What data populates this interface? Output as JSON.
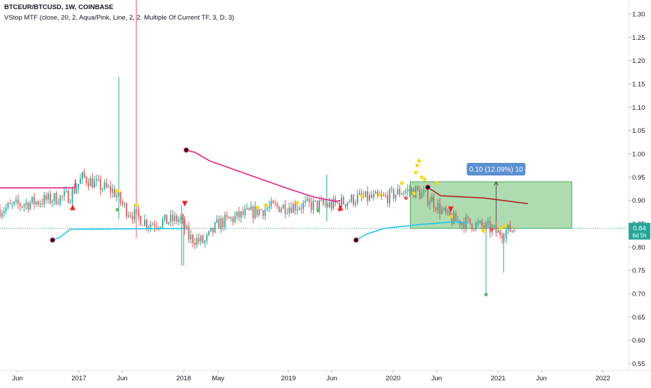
{
  "header": {
    "symbol_line": "BTCEUR/BTCUSD, 1W, COINBASE",
    "indicator_line": "VStop MTF (close, 20, 2, Aqua/Pink, Line, 2, 2. Multiple Of Current TF, 3, D, 3)"
  },
  "colors": {
    "up": "#26a69a",
    "down": "#ef5350",
    "stop_pink": "#e91e8c",
    "stop_aqua": "#1ec8f0",
    "stop_darkred": "#b22222",
    "measure_fill": "#4caf50",
    "measure_label_bg": "#5b8fd1",
    "current_label_bg": "#26a69a",
    "current_price_line": "#26a69a",
    "marker_yellow": "#ffd600",
    "marker_green": "#66bb6a",
    "marker_red": "#ff5252"
  },
  "measure_label": "0.10 (12.09%) 10",
  "current_price": {
    "value": "0.84",
    "countdown": "6d 5h"
  },
  "chart_data": {
    "type": "candlestick",
    "symbol": "BTCEUR/BTCUSD",
    "timeframe": "1W",
    "exchange": "COINBASE",
    "y_ticks": [
      0.55,
      0.6,
      0.65,
      0.7,
      0.75,
      0.8,
      0.85,
      0.9,
      0.95,
      1.0,
      1.05,
      1.1,
      1.15,
      1.2,
      1.25,
      1.3
    ],
    "y_tick_labels": [
      "0.55",
      "0.60",
      "0.65",
      "0.70",
      "0.75",
      "0.80",
      "0.85",
      "0.90",
      "0.95",
      "1.00",
      "1.05",
      "1.10",
      "1.15",
      "1.20",
      "1.25",
      "1.30"
    ],
    "ylim": [
      0.535,
      1.33
    ],
    "xlim": [
      "2016-04-01",
      "2022-04-01"
    ],
    "x_ticks": [
      {
        "date": "2016-06-01",
        "label": "Jun"
      },
      {
        "date": "2017-01-01",
        "label": "2017"
      },
      {
        "date": "2017-06-01",
        "label": "Jun"
      },
      {
        "date": "2018-01-01",
        "label": "2018"
      },
      {
        "date": "2018-05-01",
        "label": "May"
      },
      {
        "date": "2019-01-01",
        "label": "2019"
      },
      {
        "date": "2019-06-01",
        "label": "Jun"
      },
      {
        "date": "2020-01-01",
        "label": "2020"
      },
      {
        "date": "2020-06-01",
        "label": "Jun"
      },
      {
        "date": "2021-01-01",
        "label": "2021"
      },
      {
        "date": "2021-06-01",
        "label": "Jun"
      },
      {
        "date": "2022-01-01",
        "label": "2022"
      }
    ],
    "price_anchors": [
      [
        "2016-04-01",
        0.88
      ],
      [
        "2016-06-01",
        0.89
      ],
      [
        "2016-09-01",
        0.9
      ],
      [
        "2016-12-01",
        0.91
      ],
      [
        "2017-01-15",
        0.95
      ],
      [
        "2017-03-15",
        0.93
      ],
      [
        "2017-05-01",
        0.92
      ],
      [
        "2017-06-15",
        0.88
      ],
      [
        "2017-09-01",
        0.85
      ],
      [
        "2017-11-01",
        0.855
      ],
      [
        "2017-12-20",
        0.86
      ],
      [
        "2018-01-20",
        0.82
      ],
      [
        "2018-03-15",
        0.81
      ],
      [
        "2018-05-01",
        0.85
      ],
      [
        "2018-08-01",
        0.87
      ],
      [
        "2018-11-01",
        0.885
      ],
      [
        "2019-03-01",
        0.89
      ],
      [
        "2019-06-01",
        0.89
      ],
      [
        "2019-09-01",
        0.905
      ],
      [
        "2019-12-01",
        0.905
      ],
      [
        "2020-02-01",
        0.92
      ],
      [
        "2020-03-20",
        0.92
      ],
      [
        "2020-05-15",
        0.9
      ],
      [
        "2020-07-15",
        0.86
      ],
      [
        "2020-10-01",
        0.85
      ],
      [
        "2020-12-01",
        0.84
      ],
      [
        "2021-01-01",
        0.83
      ],
      [
        "2021-03-01",
        0.84
      ]
    ],
    "wick_spikes": [
      {
        "date": "2017-05-20",
        "high": 1.165,
        "low": 0.86
      },
      {
        "date": "2017-07-20",
        "high": 1.38,
        "low": 0.82
      },
      {
        "date": "2017-12-25",
        "high": 0.89,
        "low": 0.76
      },
      {
        "date": "2018-01-01",
        "high": 0.87,
        "low": 0.76
      },
      {
        "date": "2019-05-15",
        "high": 0.955,
        "low": 0.855
      },
      {
        "date": "2020-11-20",
        "high": 0.85,
        "low": 0.7
      },
      {
        "date": "2021-01-20",
        "high": 0.83,
        "low": 0.745
      }
    ],
    "stops": [
      {
        "name": "pink-stop-1",
        "color": "stop_pink",
        "points": [
          [
            "2016-04-01",
            0.927
          ],
          [
            "2016-12-20",
            0.927
          ],
          [
            "2016-12-20",
            0.945
          ]
        ]
      },
      {
        "name": "pink-stop-2",
        "color": "stop_pink",
        "points": [
          [
            "2018-01-10",
            1.008
          ],
          [
            "2018-02-10",
            1.003
          ],
          [
            "2018-04-01",
            0.985
          ],
          [
            "2018-07-01",
            0.965
          ],
          [
            "2018-10-01",
            0.945
          ],
          [
            "2019-01-01",
            0.925
          ],
          [
            "2019-04-01",
            0.907
          ],
          [
            "2019-06-15",
            0.898
          ],
          [
            "2019-07-01",
            0.9
          ]
        ]
      },
      {
        "name": "aqua-stop-1",
        "color": "stop_aqua",
        "points": [
          [
            "2016-10-01",
            0.815
          ],
          [
            "2016-10-25",
            0.82
          ],
          [
            "2016-11-15",
            0.83
          ],
          [
            "2016-12-01",
            0.838
          ],
          [
            "2018-01-01",
            0.84
          ]
        ]
      },
      {
        "name": "aqua-stop-2",
        "color": "stop_aqua",
        "points": [
          [
            "2019-08-25",
            0.815
          ],
          [
            "2019-10-01",
            0.828
          ],
          [
            "2019-12-01",
            0.84
          ],
          [
            "2020-04-01",
            0.848
          ],
          [
            "2020-08-01",
            0.854
          ],
          [
            "2020-09-20",
            0.852
          ]
        ]
      },
      {
        "name": "darkred-stop",
        "color": "stop_darkred",
        "points": [
          [
            "2020-05-01",
            0.928
          ],
          [
            "2020-06-15",
            0.91
          ],
          [
            "2020-11-15",
            0.905
          ],
          [
            "2021-04-15",
            0.893
          ]
        ]
      }
    ],
    "stop_dots": [
      {
        "date": "2016-10-01",
        "value": 0.815
      },
      {
        "date": "2018-01-10",
        "value": 1.008
      },
      {
        "date": "2019-08-25",
        "value": 0.815
      },
      {
        "date": "2020-05-01",
        "value": 0.928
      }
    ],
    "triangles": [
      {
        "date": "2016-12-10",
        "value": 0.885,
        "direction": "up"
      },
      {
        "date": "2018-01-05",
        "value": 0.893,
        "direction": "down"
      },
      {
        "date": "2019-07-01",
        "value": 0.884,
        "direction": "up"
      },
      {
        "date": "2020-07-20",
        "value": 0.881,
        "direction": "down"
      }
    ],
    "markers": [
      {
        "date": "2017-05-15",
        "value": 0.92,
        "color": "marker_yellow"
      },
      {
        "date": "2017-05-15",
        "value": 0.88,
        "color": "marker_green"
      },
      {
        "date": "2017-07-20",
        "value": 0.89,
        "color": "marker_yellow"
      },
      {
        "date": "2018-09-15",
        "value": 0.885,
        "color": "marker_yellow"
      },
      {
        "date": "2018-10-15",
        "value": 0.89,
        "color": "marker_yellow"
      },
      {
        "date": "2019-02-01",
        "value": 0.895,
        "color": "marker_yellow"
      },
      {
        "date": "2019-04-15",
        "value": 0.879,
        "color": "marker_green"
      },
      {
        "date": "2019-09-15",
        "value": 0.909,
        "color": "marker_yellow"
      },
      {
        "date": "2019-11-15",
        "value": 0.912,
        "color": "marker_yellow"
      },
      {
        "date": "2020-02-01",
        "value": 0.937,
        "color": "marker_yellow"
      },
      {
        "date": "2020-02-15",
        "value": 0.905,
        "color": "marker_red"
      },
      {
        "date": "2020-03-15",
        "value": 0.915,
        "color": "marker_yellow"
      },
      {
        "date": "2020-03-20",
        "value": 0.96,
        "color": "marker_yellow"
      },
      {
        "date": "2020-03-25",
        "value": 0.975,
        "color": "marker_yellow"
      },
      {
        "date": "2020-04-01",
        "value": 0.985,
        "color": "marker_yellow"
      },
      {
        "date": "2020-04-10",
        "value": 0.95,
        "color": "marker_yellow"
      },
      {
        "date": "2020-04-20",
        "value": 0.945,
        "color": "marker_yellow"
      },
      {
        "date": "2020-05-15",
        "value": 0.905,
        "color": "marker_green"
      },
      {
        "date": "2020-06-01",
        "value": 0.937,
        "color": "marker_yellow"
      },
      {
        "date": "2020-07-20",
        "value": 0.865,
        "color": "marker_yellow"
      },
      {
        "date": "2020-11-10",
        "value": 0.835,
        "color": "marker_yellow"
      },
      {
        "date": "2020-12-10",
        "value": 0.838,
        "color": "marker_red"
      },
      {
        "date": "2021-01-10",
        "value": 0.84,
        "color": "marker_yellow"
      },
      {
        "date": "2021-01-25",
        "value": 0.845,
        "color": "marker_yellow"
      },
      {
        "date": "2020-11-20",
        "value": 0.698,
        "color": "marker_green"
      }
    ],
    "measure_box": {
      "start": "2020-03-01",
      "end": "2021-09-15",
      "low": 0.84,
      "high": 0.94,
      "arrow_date": "2020-12-25"
    },
    "current_price_value": 0.84
  }
}
